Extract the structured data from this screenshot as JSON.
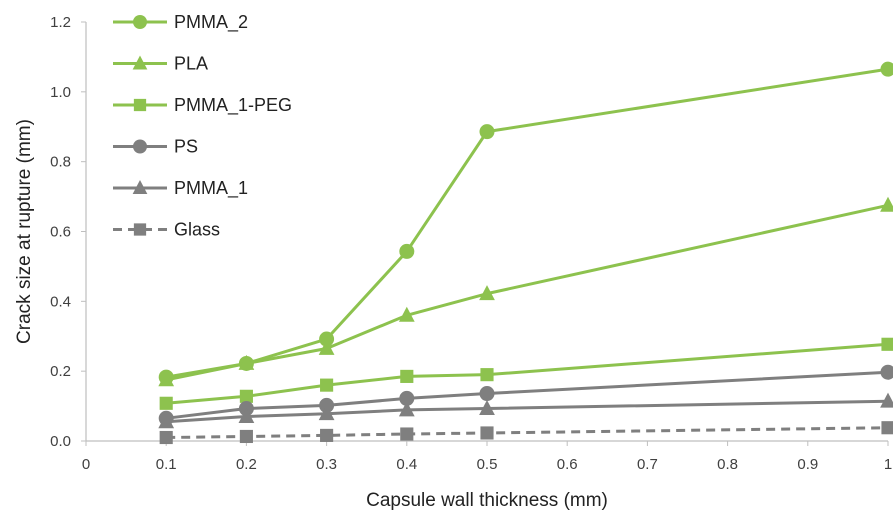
{
  "chart_data": {
    "type": "line",
    "title": "",
    "xlabel": "Capsule wall thickness (mm)",
    "ylabel": "Crack size at rupture (mm)",
    "xlim": [
      0,
      1
    ],
    "ylim": [
      0,
      1.2
    ],
    "x_ticks": [
      "0",
      "0.1",
      "0.2",
      "0.3",
      "0.4",
      "0.5",
      "0.6",
      "0.7",
      "0.8",
      "0.9",
      "1"
    ],
    "y_ticks": [
      "0.0",
      "0.2",
      "0.4",
      "0.6",
      "0.8",
      "1.0",
      "1.2"
    ],
    "x": [
      0.1,
      0.2,
      0.3,
      0.4,
      0.5,
      1.0
    ],
    "grid": false,
    "legend_position": "top-left",
    "series": [
      {
        "name": "PMMA_2",
        "values": [
          0.183,
          0.222,
          0.292,
          0.543,
          0.886,
          1.065
        ],
        "color": "#8dc24e",
        "marker": "circle",
        "dash": "solid"
      },
      {
        "name": "PLA",
        "values": [
          0.175,
          0.222,
          0.265,
          0.36,
          0.422,
          0.675
        ],
        "color": "#8dc24e",
        "marker": "triangle",
        "dash": "solid"
      },
      {
        "name": "PMMA_1-PEG",
        "values": [
          0.108,
          0.128,
          0.16,
          0.185,
          0.19,
          0.277
        ],
        "color": "#8dc24e",
        "marker": "square",
        "dash": "solid"
      },
      {
        "name": "PS",
        "values": [
          0.065,
          0.093,
          0.102,
          0.122,
          0.136,
          0.197
        ],
        "color": "#7f7f7f",
        "marker": "circle",
        "dash": "solid"
      },
      {
        "name": "PMMA_1",
        "values": [
          0.055,
          0.07,
          0.078,
          0.089,
          0.093,
          0.114
        ],
        "color": "#7f7f7f",
        "marker": "triangle",
        "dash": "solid"
      },
      {
        "name": "Glass",
        "values": [
          0.01,
          0.013,
          0.016,
          0.02,
          0.023,
          0.038
        ],
        "color": "#7f7f7f",
        "marker": "square",
        "dash": "dashed"
      }
    ]
  }
}
